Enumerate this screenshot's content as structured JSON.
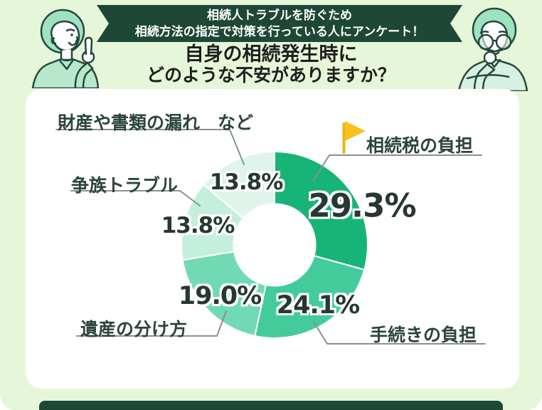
{
  "page": {
    "background_color": "#e6f6d8",
    "card_color": "#ffffff",
    "footer_bar_color": "#1e4736"
  },
  "header": {
    "ribbon": {
      "line1": "相続人トラブルを防ぐため",
      "line2": "相続方法の指定で対策を行っている人にアンケート！",
      "background_color": "#1e4736",
      "text_color": "#ffffff"
    },
    "title": {
      "line1": "自身の相続発生時に",
      "line2": "どのような不安がありますか？",
      "text_color": "#1e1e1e"
    }
  },
  "illustrations": {
    "left_person": "person-pointing-up-green-hair",
    "right_person": "person-thinking-glasses-green-hair"
  },
  "chart_data": {
    "type": "pie",
    "variant": "donut",
    "title": "自身の相続発生時にどのような不安がありますか？",
    "unit": "%",
    "start_angle_deg": 0,
    "clockwise": true,
    "hole_ratio": 0.44,
    "legend_position": "callout-labels",
    "segments": [
      {
        "label": "相続税の負担",
        "value": 29.3,
        "display": "29.3%",
        "color": "#17b477",
        "flagged": true
      },
      {
        "label": "手続きの負担",
        "value": 24.1,
        "display": "24.1%",
        "color": "#44cb9c",
        "flagged": false
      },
      {
        "label": "遺産の分け方",
        "value": 19.0,
        "display": "19.0%",
        "color": "#71dab4",
        "flagged": false
      },
      {
        "label": "争族トラブル",
        "value": 13.8,
        "display": "13.8%",
        "color": "#c4efdd",
        "flagged": false
      },
      {
        "label": "財産や書類の漏れ　など",
        "value": 13.8,
        "display": "13.8%",
        "color": "#dff5ec",
        "flagged": false
      }
    ],
    "flag_icon_color": "#f6c21d",
    "flag_pole_color": "#e9b616",
    "label_text_color": "#2c453a",
    "percent_text_color": "#263831",
    "leader_line_color": "#89928c"
  }
}
